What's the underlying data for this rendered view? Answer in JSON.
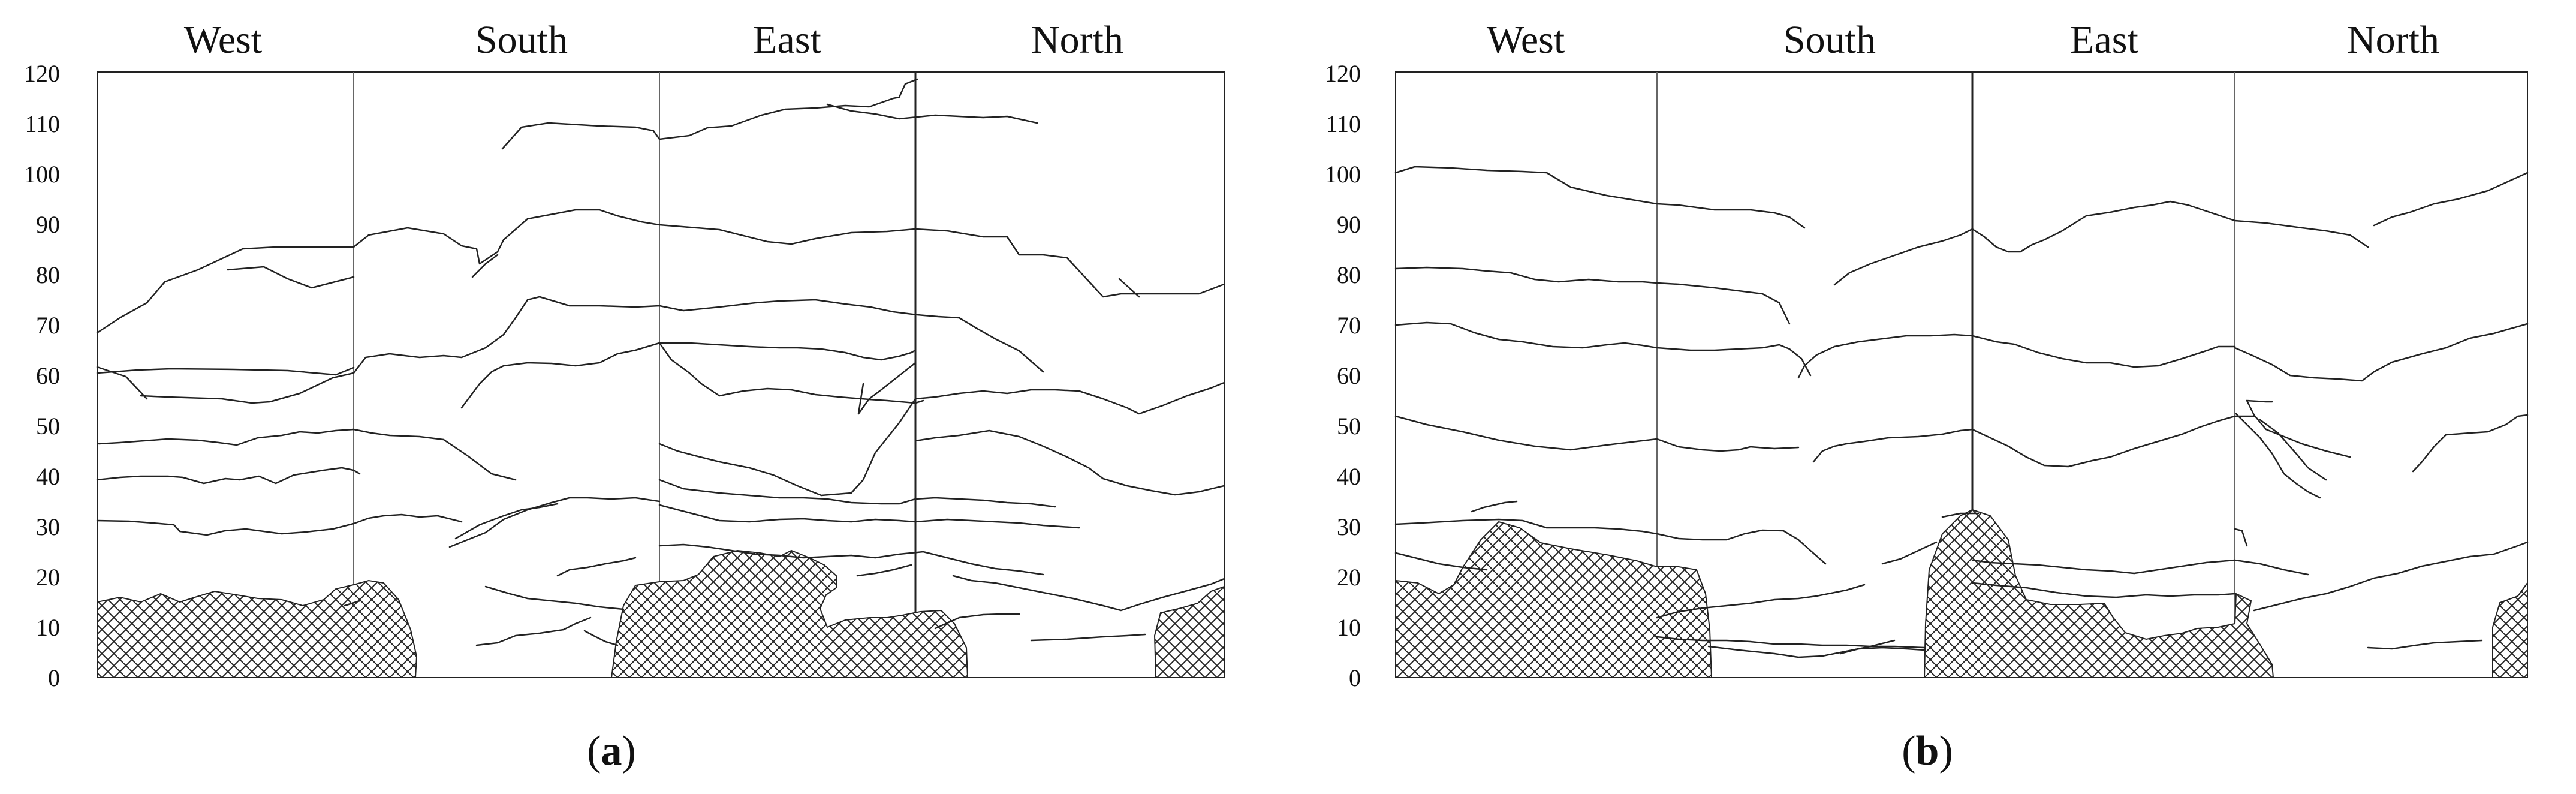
{
  "panels": [
    {
      "id": "a",
      "label_open": "(",
      "label_letter": "a",
      "label_close": ")",
      "directions": [
        "West",
        "South",
        "East",
        "North"
      ],
      "y_ticks": [
        "0",
        "10",
        "20",
        "30",
        "40",
        "50",
        "60",
        "70",
        "80",
        "90",
        "100",
        "110",
        "120"
      ]
    },
    {
      "id": "b",
      "label_open": "(",
      "label_letter": "b",
      "label_close": ")",
      "directions": [
        "West",
        "South",
        "East",
        "North"
      ],
      "y_ticks": [
        "0",
        "10",
        "20",
        "30",
        "40",
        "50",
        "60",
        "70",
        "80",
        "90",
        "100",
        "110",
        "120"
      ]
    }
  ]
}
